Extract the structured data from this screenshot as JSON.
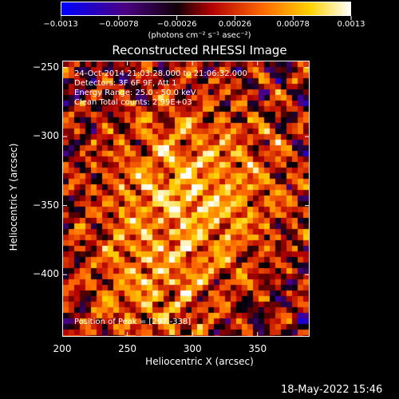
{
  "chart_data": {
    "type": "heatmap",
    "title": "Reconstructed RHESSI Image",
    "xlabel": "Heliocentric X (arcsec)",
    "ylabel": "Heliocentric Y (arcsec)",
    "xlim": [
      200,
      390
    ],
    "ylim": [
      -445,
      -245
    ],
    "x_ticks": [
      "200",
      "250",
      "300",
      "350"
    ],
    "y_ticks": [
      "-250",
      "-300",
      "-350",
      "-400"
    ],
    "colorbar": {
      "range": [
        -0.0013,
        0.0013
      ],
      "tick_labels": [
        "-0.0013",
        "-0.00078",
        "-0.00026",
        "0.00026",
        "0.00078",
        "0.0013"
      ],
      "units": "(photons cm⁻² s⁻¹ asec⁻²)",
      "colormap": [
        "#0000ff",
        "#4b0082",
        "#000000",
        "#b40000",
        "#ff6a00",
        "#ffd200",
        "#ffffff"
      ]
    },
    "annotations": [
      "24-Oct-2014 21:03:28.000 to 21:06:32.000",
      "Detectors: 3F 6F 9F, Att 1",
      "Energy Range: 25.0 - 50.0 keV",
      "Clean    Total counts: 2.99E+03",
      "Position of Peak = [297,-338]"
    ],
    "peak": {
      "x": 297,
      "y": -338
    }
  },
  "footer": {
    "date": "18-May-2022 15:46"
  }
}
